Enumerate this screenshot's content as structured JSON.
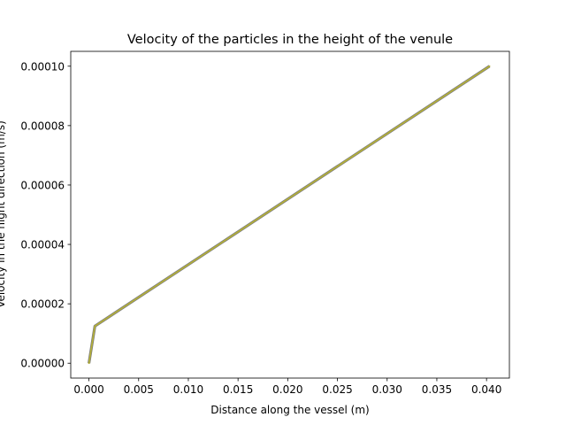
{
  "chart_data": {
    "type": "line",
    "title": "Velocity of the particles in the height of the venule",
    "xlabel": "Distance along the vessel (m)",
    "ylabel": "Velocity in the hight direction (m/s)",
    "xlim": [
      -0.00183,
      0.0423
    ],
    "ylim": [
      -5e-06,
      0.000105
    ],
    "xticks": [
      0.0,
      0.005,
      0.01,
      0.015,
      0.02,
      0.025,
      0.03,
      0.035,
      0.04
    ],
    "xtick_labels": [
      "0.000",
      "0.005",
      "0.010",
      "0.015",
      "0.020",
      "0.025",
      "0.030",
      "0.035",
      "0.040"
    ],
    "yticks": [
      0.0,
      2e-05,
      4e-05,
      6e-05,
      8e-05,
      0.0001
    ],
    "ytick_labels": [
      "0.00000",
      "0.00002",
      "0.00004",
      "0.00006",
      "0.00008",
      "0.00010"
    ],
    "grid": false,
    "series": [
      {
        "x": [
          0.0,
          0.0006,
          0.0403
        ],
        "y": [
          0.0,
          1.25e-05,
          0.0001
        ],
        "color": "#b5b134"
      }
    ]
  }
}
